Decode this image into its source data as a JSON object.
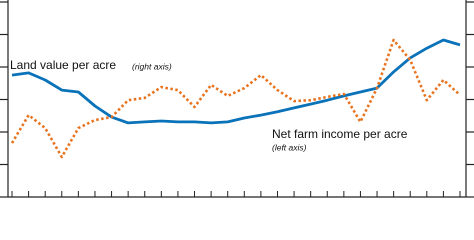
{
  "chart_data": {
    "type": "line",
    "annotations": [
      "Land value per acre",
      "(right axis)",
      "Net farm income per acre",
      "(left axis)"
    ],
    "categories": [
      null,
      null,
      null,
      null,
      null,
      null,
      null,
      null,
      null,
      null,
      null,
      null,
      null,
      null,
      null,
      null,
      null,
      null,
      null,
      null,
      null,
      null,
      null,
      null,
      null,
      null,
      null,
      null
    ],
    "ylim": [
      0,
      6
    ],
    "yticks": [
      0,
      1,
      2,
      3,
      4,
      5,
      6
    ],
    "y2lim": [
      0,
      6
    ],
    "y2ticks": [
      0,
      1,
      2,
      3,
      4,
      5,
      6
    ],
    "series": [
      {
        "name": "Land value per acre",
        "color": "#0a72b8",
        "axis": "y2",
        "style": "solid",
        "values": [
          3.75,
          3.82,
          3.6,
          3.29,
          3.23,
          2.8,
          2.46,
          2.28,
          2.31,
          2.34,
          2.31,
          2.31,
          2.28,
          2.31,
          2.43,
          2.52,
          2.62,
          2.74,
          2.86,
          2.98,
          3.11,
          3.23,
          3.35,
          3.85,
          4.28,
          4.58,
          4.83,
          4.68
        ]
      },
      {
        "name": "Net farm income per acre",
        "color": "#e8731e",
        "axis": "y",
        "style": "dotted",
        "values": [
          1.66,
          2.52,
          2.12,
          1.23,
          2.12,
          2.37,
          2.46,
          2.98,
          3.05,
          3.38,
          3.29,
          2.77,
          3.45,
          3.11,
          3.35,
          3.75,
          3.29,
          2.95,
          2.98,
          3.08,
          3.17,
          2.31,
          3.35,
          4.83,
          4.22,
          2.98,
          3.6,
          3.14
        ]
      }
    ]
  }
}
